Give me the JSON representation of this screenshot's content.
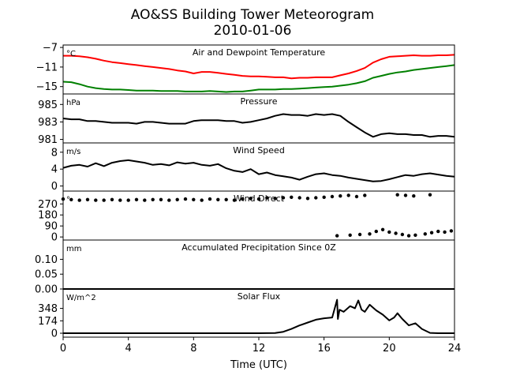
{
  "figure": {
    "title": "AO&SS Building Tower Meteorogram",
    "subtitle": "2010-01-06"
  },
  "chart_data": [
    {
      "type": "line",
      "title": "Air and Dewpoint Temperature",
      "unit_label": "°C",
      "ylim": [
        -16.5,
        -6.5
      ],
      "yticks": [
        -7,
        -11,
        -15
      ],
      "ytick_labels": [
        "−7",
        "−11",
        "−15"
      ],
      "series": [
        {
          "color": "#ff0000",
          "x": [
            0,
            0.5,
            1,
            1.5,
            2,
            2.5,
            3,
            3.5,
            4,
            4.5,
            5,
            5.5,
            6,
            6.5,
            7,
            7.5,
            8,
            8.5,
            9,
            9.5,
            10,
            10.5,
            11,
            11.5,
            12,
            12.5,
            13,
            13.5,
            14,
            14.5,
            15,
            15.5,
            16,
            16.5,
            17,
            17.5,
            18,
            18.5,
            19,
            19.5,
            20,
            20.5,
            21,
            21.5,
            22,
            22.5,
            23,
            23.5,
            24
          ],
          "y": [
            -8.7,
            -8.7,
            -8.8,
            -9.0,
            -9.3,
            -9.7,
            -10.0,
            -10.2,
            -10.4,
            -10.6,
            -10.8,
            -11.0,
            -11.2,
            -11.4,
            -11.7,
            -11.9,
            -12.3,
            -12.0,
            -12.0,
            -12.2,
            -12.4,
            -12.6,
            -12.8,
            -12.9,
            -12.9,
            -13.0,
            -13.1,
            -13.1,
            -13.3,
            -13.2,
            -13.2,
            -13.1,
            -13.1,
            -13.1,
            -12.7,
            -12.3,
            -11.8,
            -11.2,
            -10.1,
            -9.4,
            -8.9,
            -8.8,
            -8.7,
            -8.6,
            -8.7,
            -8.7,
            -8.6,
            -8.6,
            -8.5
          ]
        },
        {
          "color": "#008000",
          "x": [
            0,
            0.5,
            1,
            1.5,
            2,
            2.5,
            3,
            3.5,
            4,
            4.5,
            5,
            5.5,
            6,
            6.5,
            7,
            7.5,
            8,
            8.5,
            9,
            9.5,
            10,
            10.5,
            11,
            11.5,
            12,
            12.5,
            13,
            13.5,
            14,
            14.5,
            15,
            15.5,
            16,
            16.5,
            17,
            17.5,
            18,
            18.5,
            19,
            19.5,
            20,
            20.5,
            21,
            21.5,
            22,
            22.5,
            23,
            23.5,
            24
          ],
          "y": [
            -14.0,
            -14.1,
            -14.5,
            -15.0,
            -15.3,
            -15.5,
            -15.6,
            -15.6,
            -15.7,
            -15.8,
            -15.8,
            -15.8,
            -15.9,
            -15.9,
            -15.9,
            -16.0,
            -16.0,
            -16.0,
            -15.9,
            -16.0,
            -16.1,
            -16.0,
            -16.0,
            -15.8,
            -15.6,
            -15.6,
            -15.6,
            -15.5,
            -15.5,
            -15.4,
            -15.3,
            -15.2,
            -15.1,
            -15.0,
            -14.8,
            -14.6,
            -14.3,
            -13.9,
            -13.2,
            -12.8,
            -12.4,
            -12.1,
            -11.9,
            -11.6,
            -11.4,
            -11.2,
            -11.0,
            -10.8,
            -10.6
          ]
        }
      ]
    },
    {
      "type": "line",
      "title": "Pressure",
      "unit_label": "hPa",
      "ylim": [
        980.6,
        986.2
      ],
      "yticks": [
        985,
        983,
        981
      ],
      "ytick_labels": [
        "985",
        "983",
        "981"
      ],
      "series": [
        {
          "color": "#000000",
          "x": [
            0,
            0.5,
            1,
            1.5,
            2,
            2.5,
            3,
            3.5,
            4,
            4.5,
            5,
            5.5,
            6,
            6.5,
            7,
            7.5,
            8,
            8.5,
            9,
            9.5,
            10,
            10.5,
            11,
            11.5,
            12,
            12.5,
            13,
            13.5,
            14,
            14.5,
            15,
            15.5,
            16,
            16.5,
            17,
            17.5,
            18,
            18.5,
            19,
            19.5,
            20,
            20.5,
            21,
            21.5,
            22,
            22.5,
            23,
            23.5,
            24
          ],
          "y": [
            983.4,
            983.3,
            983.3,
            983.1,
            983.1,
            983.0,
            982.9,
            982.9,
            982.9,
            982.8,
            983.0,
            983.0,
            982.9,
            982.8,
            982.8,
            982.8,
            983.1,
            983.2,
            983.2,
            983.2,
            983.1,
            983.1,
            982.9,
            983.0,
            983.2,
            983.4,
            983.7,
            983.9,
            983.8,
            983.8,
            983.7,
            983.9,
            983.8,
            983.9,
            983.7,
            983.0,
            982.4,
            981.8,
            981.3,
            981.6,
            981.7,
            981.6,
            981.6,
            981.5,
            981.5,
            981.3,
            981.4,
            981.4,
            981.3
          ]
        }
      ]
    },
    {
      "type": "line",
      "title": "Wind Speed",
      "unit_label": "m/s",
      "ylim": [
        -1.2,
        10.2
      ],
      "yticks": [
        8,
        4,
        0
      ],
      "ytick_labels": [
        "8",
        "4",
        "0"
      ],
      "series": [
        {
          "color": "#000000",
          "x": [
            0,
            0.5,
            1,
            1.5,
            2,
            2.5,
            3,
            3.5,
            4,
            4.5,
            5,
            5.5,
            6,
            6.5,
            7,
            7.5,
            8,
            8.5,
            9,
            9.5,
            10,
            10.5,
            11,
            11.5,
            12,
            12.5,
            13,
            13.5,
            14,
            14.5,
            15,
            15.5,
            16,
            16.5,
            17,
            17.5,
            18,
            18.5,
            19,
            19.5,
            20,
            20.5,
            21,
            21.5,
            22,
            22.5,
            23,
            23.5,
            24
          ],
          "y": [
            4.3,
            4.8,
            5.0,
            4.6,
            5.4,
            4.7,
            5.5,
            5.9,
            6.1,
            5.8,
            5.5,
            5.0,
            5.2,
            4.9,
            5.6,
            5.3,
            5.5,
            5.0,
            4.8,
            5.2,
            4.2,
            3.6,
            3.3,
            4.0,
            2.8,
            3.2,
            2.6,
            2.3,
            2.0,
            1.5,
            2.2,
            2.8,
            3.0,
            2.6,
            2.4,
            2.0,
            1.7,
            1.4,
            1.1,
            1.2,
            1.6,
            2.1,
            2.6,
            2.4,
            2.8,
            3.0,
            2.7,
            2.4,
            2.2
          ]
        }
      ]
    },
    {
      "type": "scatter",
      "title": "Wind Direct",
      "unit_label": "°",
      "ylim": [
        -25,
        375
      ],
      "yticks": [
        270,
        180,
        90,
        0
      ],
      "ytick_labels": [
        "270",
        "180",
        "90",
        "0"
      ],
      "series": [
        {
          "color": "#000000",
          "x": [
            0,
            0.5,
            1,
            1.5,
            2,
            2.5,
            3,
            3.5,
            4,
            4.5,
            5,
            5.5,
            6,
            6.5,
            7,
            7.5,
            8,
            8.5,
            9,
            9.5,
            10,
            10.5,
            11,
            11.5,
            12,
            12.5,
            13,
            13.5,
            14,
            14.5,
            15,
            15.5,
            16,
            16.5,
            17,
            17.5,
            18,
            18.5,
            20.5,
            21,
            21.5,
            22.5
          ],
          "y": [
            310,
            305,
            300,
            305,
            300,
            300,
            305,
            300,
            300,
            305,
            300,
            305,
            305,
            300,
            305,
            310,
            305,
            300,
            310,
            305,
            305,
            300,
            310,
            315,
            310,
            320,
            315,
            320,
            325,
            320,
            315,
            320,
            325,
            330,
            335,
            340,
            330,
            340,
            345,
            340,
            335,
            345
          ]
        },
        {
          "color": "#000000",
          "x": [
            16.8,
            17.6,
            18.2,
            18.8,
            19.2,
            19.6,
            20.0,
            20.4,
            20.8,
            21.2,
            21.6,
            22.2,
            22.6,
            23.0,
            23.4,
            23.8
          ],
          "y": [
            10,
            15,
            20,
            25,
            45,
            60,
            40,
            30,
            20,
            10,
            15,
            25,
            35,
            45,
            40,
            50
          ]
        }
      ]
    },
    {
      "type": "line",
      "title": "Accumulated Precipitation Since 0Z",
      "unit_label": "mm",
      "ylim": [
        0,
        0.165
      ],
      "yticks": [
        0.1,
        0.05,
        0.0
      ],
      "ytick_labels": [
        "0.10",
        "0.05",
        "0.00"
      ],
      "series": [
        {
          "color": "#000000",
          "x": [
            0,
            24
          ],
          "y": [
            0,
            0
          ]
        }
      ]
    },
    {
      "type": "line",
      "title": "Solar Flux",
      "unit_label": "W/m^2",
      "ylim": [
        -55,
        620
      ],
      "yticks": [
        348,
        174,
        0
      ],
      "ytick_labels": [
        "348",
        "174",
        "0"
      ],
      "series": [
        {
          "color": "#000000",
          "x": [
            0,
            2,
            4,
            6,
            8,
            10,
            12,
            13,
            13.5,
            14,
            14.5,
            15,
            15.5,
            16,
            16.5,
            16.8,
            16.85,
            16.95,
            17.2,
            17.6,
            17.9,
            18.1,
            18.3,
            18.5,
            18.8,
            19.2,
            19.6,
            20,
            20.3,
            20.5,
            20.8,
            21.2,
            21.6,
            22,
            22.5,
            23,
            24
          ],
          "y": [
            0,
            0,
            0,
            0,
            0,
            0,
            0,
            2,
            20,
            60,
            110,
            150,
            190,
            210,
            220,
            470,
            200,
            330,
            300,
            380,
            350,
            460,
            330,
            300,
            400,
            320,
            260,
            180,
            220,
            280,
            200,
            110,
            140,
            60,
            5,
            0,
            0
          ]
        }
      ]
    }
  ],
  "xaxis": {
    "label": "Time (UTC)",
    "ticks": [
      0,
      4,
      8,
      12,
      16,
      20,
      24
    ],
    "tick_labels": [
      "0",
      "4",
      "8",
      "12",
      "16",
      "20",
      "24"
    ],
    "xlim": [
      0,
      24
    ]
  }
}
